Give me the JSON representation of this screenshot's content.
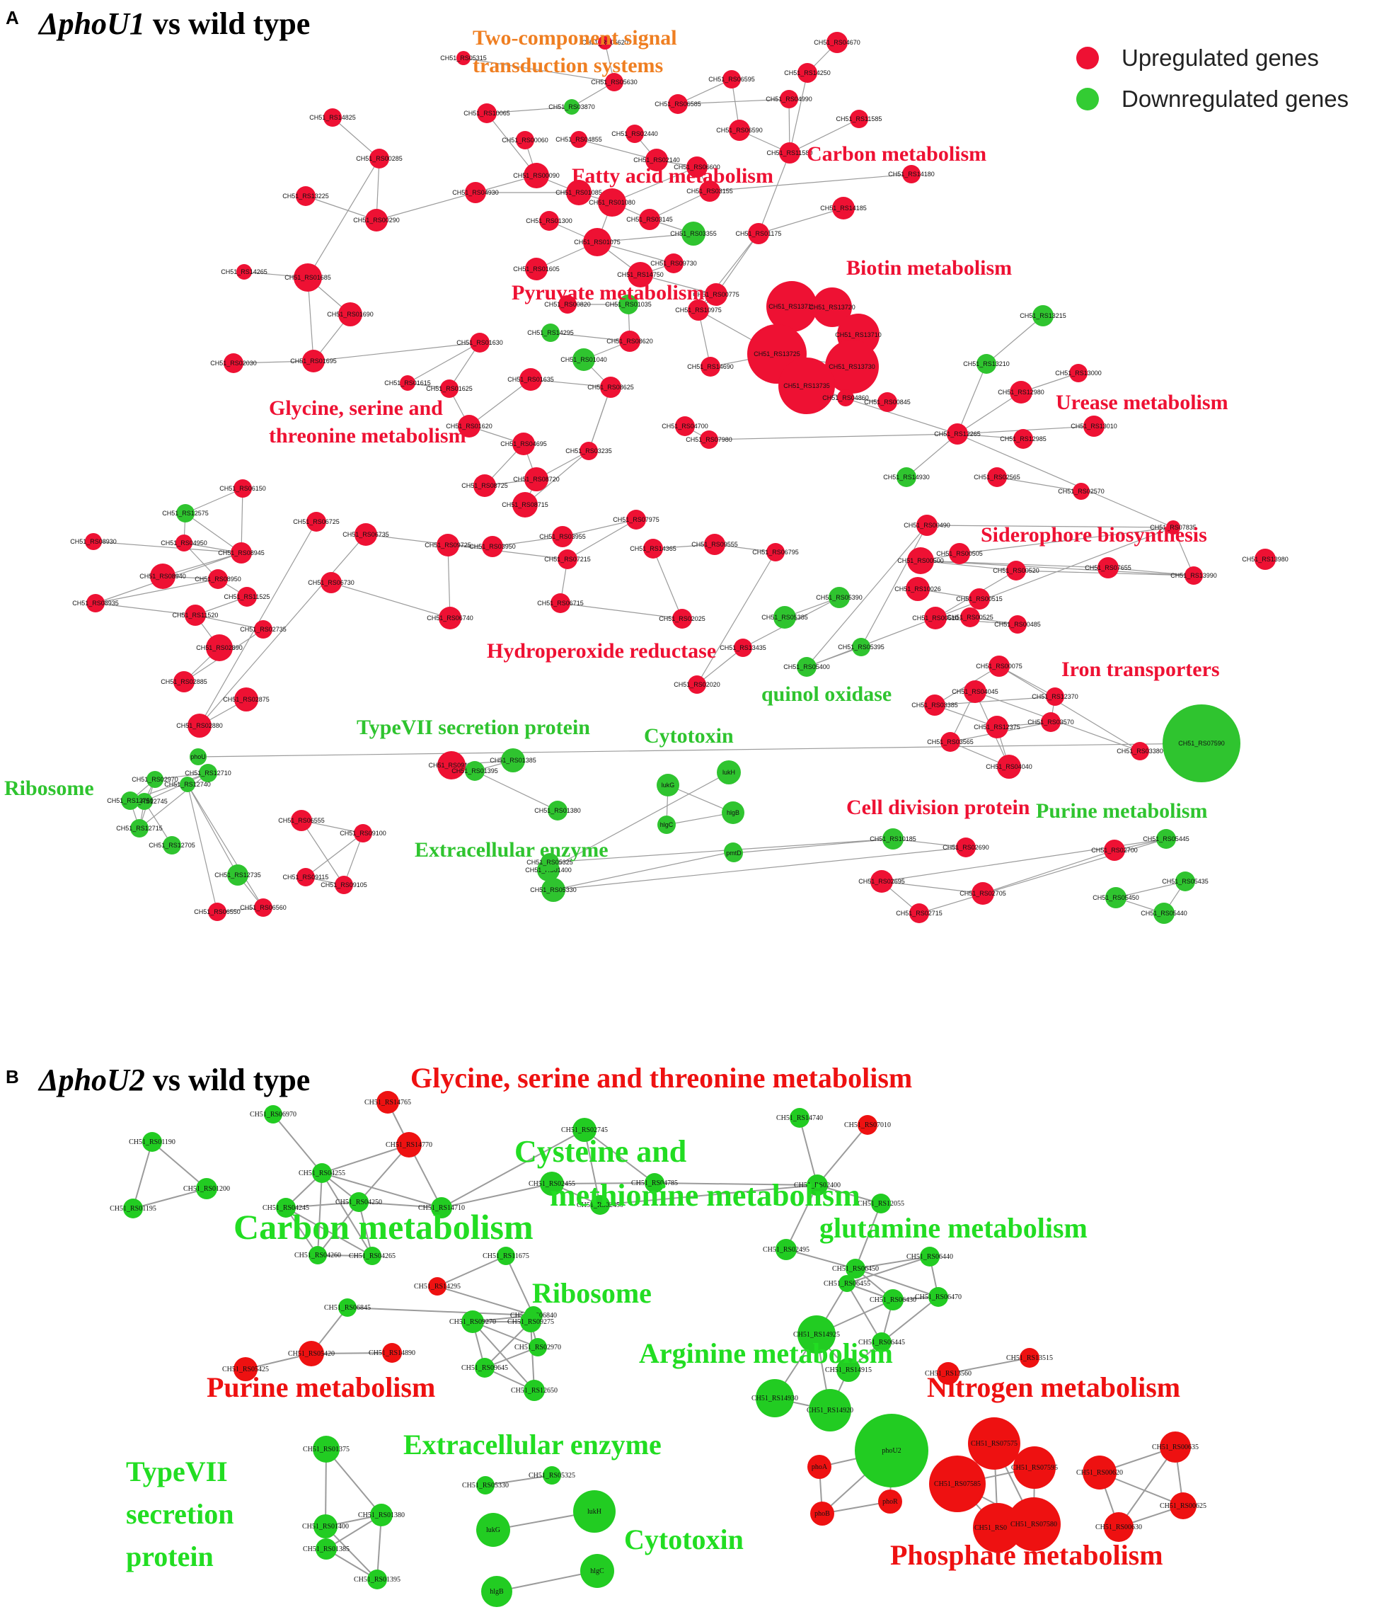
{
  "colors": {
    "up": "#ee1133",
    "down": "#2fc42f",
    "edge": "#9b9b9b",
    "upB": "#ee1111",
    "downB": "#22cc22"
  },
  "legend": {
    "up": "Upregulated genes",
    "down": "Downregulated genes"
  },
  "panelA": {
    "letter": "A",
    "title_gene": "ΔphoU1",
    "title_rest": " vs wild type",
    "categories": [
      {
        "text": "Two-component signal",
        "color": "#ef7f22"
      },
      {
        "text": "transduction systems",
        "color": "#ef7f22"
      },
      {
        "text": "Carbon metabolism",
        "color": "#ee1133"
      },
      {
        "text": "Fatty acid metabolism",
        "color": "#ee1133"
      },
      {
        "text": "Biotin metabolism",
        "color": "#ee1133"
      },
      {
        "text": "Pyruvate metabolism",
        "color": "#ee1133"
      },
      {
        "text": "Urease metabolism",
        "color": "#ee1133"
      },
      {
        "text": "Glycine, serine and",
        "color": "#ee1133"
      },
      {
        "text": "threonine metabolism",
        "color": "#ee1133"
      },
      {
        "text": "Siderophore biosynthesis",
        "color": "#ee1133"
      },
      {
        "text": "Hydroperoxide reductase",
        "color": "#ee1133"
      },
      {
        "text": "Iron transporters",
        "color": "#ee1133"
      },
      {
        "text": "quinol oxidase",
        "color": "#2fc42f"
      },
      {
        "text": "TypeVII secretion protein",
        "color": "#2fc42f"
      },
      {
        "text": "Cytotoxin",
        "color": "#2fc42f"
      },
      {
        "text": "Ribosome",
        "color": "#2fc42f"
      },
      {
        "text": "Cell division protein",
        "color": "#ee1133"
      },
      {
        "text": "Purine metabolism",
        "color": "#2fc42f"
      },
      {
        "text": "Extracellular enzyme",
        "color": "#2fc42f"
      }
    ],
    "nodes": [
      {
        "l": "CH51_RS05315",
        "c": "u"
      },
      {
        "l": "CH51_RS05620",
        "c": "u"
      },
      {
        "l": "CH51_RS05630",
        "c": "u"
      },
      {
        "l": "CH51_RS03870",
        "c": "d"
      },
      {
        "l": "CH51_RS10065",
        "c": "u"
      },
      {
        "l": "CH51_RS14825",
        "c": "u"
      },
      {
        "l": "CH51_RS00285",
        "c": "u"
      },
      {
        "l": "CH51_RS13225",
        "c": "u"
      },
      {
        "l": "CH51_RS00290",
        "c": "u"
      },
      {
        "l": "CH51_RS04930",
        "c": "u"
      },
      {
        "l": "CH51_RS14265",
        "c": "u"
      },
      {
        "l": "CH51_RS01685",
        "c": "u"
      },
      {
        "l": "CH51_RS01690",
        "c": "u"
      },
      {
        "l": "CH51_RS02030",
        "c": "u"
      },
      {
        "l": "CH51_RS01695",
        "c": "u"
      },
      {
        "l": "CH51_RS04670",
        "c": "u"
      },
      {
        "l": "CH51_RS14250",
        "c": "u"
      },
      {
        "l": "CH51_RS06595",
        "c": "u"
      },
      {
        "l": "CH51_RS06585",
        "c": "u"
      },
      {
        "l": "CH51_RS04990",
        "c": "u"
      },
      {
        "l": "CH51_RS11585",
        "c": "u"
      },
      {
        "l": "CH51_RS06590",
        "c": "u"
      },
      {
        "l": "CH51_RS11580",
        "c": "u"
      },
      {
        "l": "CH51_RS14180",
        "c": "u"
      },
      {
        "l": "CH51_RS14185",
        "c": "u"
      },
      {
        "l": "CH51_RS01175",
        "c": "u"
      },
      {
        "l": "CH51_RS02440",
        "c": "u"
      },
      {
        "l": "CH51_RS04855",
        "c": "u"
      },
      {
        "l": "CH51_RS00060",
        "c": "u"
      },
      {
        "l": "CH51_RS02140",
        "c": "u"
      },
      {
        "l": "CH51_RS06600",
        "c": "u"
      },
      {
        "l": "CH51_RS00090",
        "c": "u"
      },
      {
        "l": "CH51_RS01085",
        "c": "u"
      },
      {
        "l": "CH51_RS01080",
        "c": "u"
      },
      {
        "l": "CH51_RS03155",
        "c": "u"
      },
      {
        "l": "CH51_RS03145",
        "c": "u"
      },
      {
        "l": "CH51_RS03355",
        "c": "d"
      },
      {
        "l": "CH51_RS01300",
        "c": "u"
      },
      {
        "l": "CH51_RS01075",
        "c": "u"
      },
      {
        "l": "CH51_RS09730",
        "c": "u"
      },
      {
        "l": "CH51_RS14750",
        "c": "u"
      },
      {
        "l": "CH51_RS01605",
        "c": "u"
      },
      {
        "l": "CH51_RS00775",
        "c": "u"
      },
      {
        "l": "CH51_RS00820",
        "c": "u"
      },
      {
        "l": "CH51_RS01035",
        "c": "d"
      },
      {
        "l": "CH51_RS10975",
        "c": "u"
      },
      {
        "l": "CH51_RS14295",
        "c": "d"
      },
      {
        "l": "CH51_RS08620",
        "c": "u"
      },
      {
        "l": "CH51_RS01040",
        "c": "d"
      },
      {
        "l": "CH51_RS14690",
        "c": "u"
      },
      {
        "l": "CH51_RS13715",
        "c": "u"
      },
      {
        "l": "CH51_RS13720",
        "c": "u"
      },
      {
        "l": "CH51_RS13710",
        "c": "u"
      },
      {
        "l": "CH51_RS13725",
        "c": "u"
      },
      {
        "l": "CH51_RS13730",
        "c": "u"
      },
      {
        "l": "CH51_RS13735",
        "c": "u"
      },
      {
        "l": "CH51_RS04860",
        "c": "u"
      },
      {
        "l": "CH51_RS00845",
        "c": "u"
      },
      {
        "l": "CH51_RS01630",
        "c": "u"
      },
      {
        "l": "CH51_RS01615",
        "c": "u"
      },
      {
        "l": "CH51_RS01625",
        "c": "u"
      },
      {
        "l": "CH51_RS01635",
        "c": "u"
      },
      {
        "l": "CH51_RS08625",
        "c": "u"
      },
      {
        "l": "CH51_RS01620",
        "c": "u"
      },
      {
        "l": "CH51_RS04695",
        "c": "u"
      },
      {
        "l": "CH51_RS03235",
        "c": "u"
      },
      {
        "l": "CH51_RS04700",
        "c": "u"
      },
      {
        "l": "CH51_RS07980",
        "c": "u"
      },
      {
        "l": "CH51_RS08725",
        "c": "u"
      },
      {
        "l": "CH51_RS08720",
        "c": "u"
      },
      {
        "l": "CH51_RS08715",
        "c": "u"
      },
      {
        "l": "CH51_RS13215",
        "c": "d"
      },
      {
        "l": "CH51_RS13210",
        "c": "d"
      },
      {
        "l": "CH51_RS13000",
        "c": "u"
      },
      {
        "l": "CH51_RS12980",
        "c": "u"
      },
      {
        "l": "CH51_RS13010",
        "c": "u"
      },
      {
        "l": "CH51_RS12265",
        "c": "u"
      },
      {
        "l": "CH51_RS12985",
        "c": "u"
      },
      {
        "l": "CH51_RS14930",
        "c": "d"
      },
      {
        "l": "CH51_RS02565",
        "c": "u"
      },
      {
        "l": "CH51_RS02570",
        "c": "u"
      },
      {
        "l": "CH51_RS06150",
        "c": "u"
      },
      {
        "l": "CH51_RS12575",
        "c": "d"
      },
      {
        "l": "CH51_RS08930",
        "c": "u"
      },
      {
        "l": "CH51_RS04950",
        "c": "u"
      },
      {
        "l": "CH51_RS08945",
        "c": "u"
      },
      {
        "l": "CH51_RS08940",
        "c": "u"
      },
      {
        "l": "CH51_RS08950",
        "c": "u"
      },
      {
        "l": "CH51_RS11525",
        "c": "u"
      },
      {
        "l": "CH51_RS08935",
        "c": "u"
      },
      {
        "l": "CH51_RS11520",
        "c": "u"
      },
      {
        "l": "CH51_RS02735",
        "c": "u"
      },
      {
        "l": "CH51_RS02890",
        "c": "u"
      },
      {
        "l": "CH51_RS02885",
        "c": "u"
      },
      {
        "l": "CH51_RS02875",
        "c": "u"
      },
      {
        "l": "CH51_RS02880",
        "c": "u"
      },
      {
        "l": "CH51_RS06725",
        "c": "u"
      },
      {
        "l": "CH51_RS06735",
        "c": "u"
      },
      {
        "l": "CH51_RS06730",
        "c": "u"
      },
      {
        "l": "CH51_RS06740",
        "c": "u"
      },
      {
        "l": "CH51_RS09725",
        "c": "u"
      },
      {
        "l": "CH51_RS03950",
        "c": "u"
      },
      {
        "l": "CH51_RS03955",
        "c": "u"
      },
      {
        "l": "CH51_RS07975",
        "c": "u"
      },
      {
        "l": "CH51_RS07215",
        "c": "u"
      },
      {
        "l": "CH51_RS14365",
        "c": "u"
      },
      {
        "l": "CH51_RS09555",
        "c": "u"
      },
      {
        "l": "CH51_RS06795",
        "c": "u"
      },
      {
        "l": "CH51_RS06715",
        "c": "u"
      },
      {
        "l": "CH51_RS02025",
        "c": "u"
      },
      {
        "l": "CH51_RS02020",
        "c": "u"
      },
      {
        "l": "CH51_RS13435",
        "c": "u"
      },
      {
        "l": "CH51_RS05390",
        "c": "d"
      },
      {
        "l": "CH51_RS05385",
        "c": "d"
      },
      {
        "l": "CH51_RS05395",
        "c": "d"
      },
      {
        "l": "CH51_RS05400",
        "c": "d"
      },
      {
        "l": "CH51_RS00490",
        "c": "u"
      },
      {
        "l": "CH51_RS07835",
        "c": "u"
      },
      {
        "l": "CH51_RS00505",
        "c": "u"
      },
      {
        "l": "CH51_RS00500",
        "c": "u"
      },
      {
        "l": "CH51_RS00520",
        "c": "u"
      },
      {
        "l": "CH51_RS07655",
        "c": "u"
      },
      {
        "l": "CH51_RS13990",
        "c": "u"
      },
      {
        "l": "CH51_RS13980",
        "c": "u"
      },
      {
        "l": "CH51_RS10026",
        "c": "u"
      },
      {
        "l": "CH51_RS00515",
        "c": "u"
      },
      {
        "l": "CH51_RS00525",
        "c": "u"
      },
      {
        "l": "CH51_RS00485",
        "c": "u"
      },
      {
        "l": "CH51_RS00510",
        "c": "u"
      },
      {
        "l": "CH51_RS00075",
        "c": "u"
      },
      {
        "l": "CH51_RS12370",
        "c": "u"
      },
      {
        "l": "CH51_RS03385",
        "c": "u"
      },
      {
        "l": "CH51_RS12375",
        "c": "u"
      },
      {
        "l": "CH51_RS03570",
        "c": "u"
      },
      {
        "l": "CH51_RS03565",
        "c": "u"
      },
      {
        "l": "CH51_RS04040",
        "c": "u"
      },
      {
        "l": "CH51_RS04045",
        "c": "u"
      },
      {
        "l": "CH51_RS03380",
        "c": "u"
      },
      {
        "l": "CH51_RS07590",
        "c": "d"
      },
      {
        "l": "phoU",
        "c": "d"
      },
      {
        "l": "CH51_RS02970",
        "c": "d"
      },
      {
        "l": "CH51_RS12710",
        "c": "d"
      },
      {
        "l": "CH51_RS12745",
        "c": "d"
      },
      {
        "l": "CH51_RS12750",
        "c": "d"
      },
      {
        "l": "CH51_RS12715",
        "c": "d"
      },
      {
        "l": "CH51_RS12705",
        "c": "d"
      },
      {
        "l": "CH51_RS12740",
        "c": "d"
      },
      {
        "l": "CH51_RS12735",
        "c": "d"
      },
      {
        "l": "CH51_RS06550",
        "c": "u"
      },
      {
        "l": "CH51_RS06560",
        "c": "u"
      },
      {
        "l": "CH51_RS06555",
        "c": "u"
      },
      {
        "l": "CH51_RS09100",
        "c": "u"
      },
      {
        "l": "CH51_RS09115",
        "c": "u"
      },
      {
        "l": "CH51_RS09105",
        "c": "u"
      },
      {
        "l": "CH51_RS09110",
        "c": "u"
      },
      {
        "l": "CH51_RS01385",
        "c": "d"
      },
      {
        "l": "CH51_RS01380",
        "c": "d"
      },
      {
        "l": "CH51_RS01395",
        "c": "d"
      },
      {
        "l": "CH51_RS01400",
        "c": "d"
      },
      {
        "l": "lukH",
        "c": "d"
      },
      {
        "l": "lukG",
        "c": "d"
      },
      {
        "l": "hlgB",
        "c": "d"
      },
      {
        "l": "hlgC",
        "c": "d"
      },
      {
        "l": "pmtB",
        "c": "d"
      },
      {
        "l": "pmtD",
        "c": "d"
      },
      {
        "l": "CH51_RS05330",
        "c": "d"
      },
      {
        "l": "CH51_RS05325",
        "c": "d"
      },
      {
        "l": "CH51_RS10185",
        "c": "d"
      },
      {
        "l": "CH51_RS02690",
        "c": "u"
      },
      {
        "l": "CH51_RS02695",
        "c": "u"
      },
      {
        "l": "CH51_RS02705",
        "c": "u"
      },
      {
        "l": "CH51_RS02715",
        "c": "u"
      },
      {
        "l": "CH51_RS02700",
        "c": "u"
      },
      {
        "l": "CH51_RS05445",
        "c": "d"
      },
      {
        "l": "CH51_RS05435",
        "c": "d"
      },
      {
        "l": "CH51_RS05450",
        "c": "d"
      },
      {
        "l": "CH51_RS05440",
        "c": "d"
      },
      {
        "l": "CH51_RS05430",
        "c": "d"
      }
    ]
  },
  "panelB": {
    "letter": "B",
    "title_gene": "ΔphoU2",
    "title_rest": " vs wild type",
    "categories": [
      {
        "text": "Glycine, serine and threonine metabolism",
        "color": "#ee1111"
      },
      {
        "text": "Cysteine and",
        "color": "#22dd22"
      },
      {
        "text": "methionine metabolism",
        "color": "#22dd22"
      },
      {
        "text": "Carbon metabolism",
        "color": "#22dd22"
      },
      {
        "text": "glutamine metabolism",
        "color": "#22dd22"
      },
      {
        "text": "Ribosome",
        "color": "#22dd22"
      },
      {
        "text": "Arginine metabolism",
        "color": "#22dd22"
      },
      {
        "text": "Purine metabolism",
        "color": "#ee1111"
      },
      {
        "text": "Nitrogen metabolism",
        "color": "#ee1111"
      },
      {
        "text": "Extracellular enzyme",
        "color": "#22dd22"
      },
      {
        "text": "TypeVII",
        "color": "#22dd22"
      },
      {
        "text": "secretion",
        "color": "#22dd22"
      },
      {
        "text": "protein",
        "color": "#22dd22"
      },
      {
        "text": "Cytotoxin",
        "color": "#22dd22"
      },
      {
        "text": "Phosphate metabolism",
        "color": "#ee1111"
      }
    ],
    "nodes": [
      {
        "l": "CH51_RS01190",
        "c": "d"
      },
      {
        "l": "CH51_RS01200",
        "c": "d"
      },
      {
        "l": "CH51_RS01195",
        "c": "d"
      },
      {
        "l": "CH51_RS06970",
        "c": "d"
      },
      {
        "l": "CH51_RS14765",
        "c": "u"
      },
      {
        "l": "CH51_RS14770",
        "c": "u"
      },
      {
        "l": "CH51_RS04255",
        "c": "d"
      },
      {
        "l": "CH51_RS04245",
        "c": "d"
      },
      {
        "l": "CH51_RS04250",
        "c": "d"
      },
      {
        "l": "CH51_RS14710",
        "c": "d"
      },
      {
        "l": "CH51_RS04260",
        "c": "d"
      },
      {
        "l": "CH51_RS04265",
        "c": "d"
      },
      {
        "l": "CH51_RS02745",
        "c": "d"
      },
      {
        "l": "CH51_RS04785",
        "c": "d"
      },
      {
        "l": "CH51_RS02455",
        "c": "d"
      },
      {
        "l": "CH51_RS02450",
        "c": "d"
      },
      {
        "l": "CH51_RS14740",
        "c": "d"
      },
      {
        "l": "CH51_RS07010",
        "c": "u"
      },
      {
        "l": "CH51_RS02400",
        "c": "d"
      },
      {
        "l": "CH51_RS12055",
        "c": "d"
      },
      {
        "l": "CH51_RS02495",
        "c": "d"
      },
      {
        "l": "CH51_RS06440",
        "c": "d"
      },
      {
        "l": "CH51_RS06450",
        "c": "d"
      },
      {
        "l": "CH51_RS06455",
        "c": "d"
      },
      {
        "l": "CH51_RS06430",
        "c": "d"
      },
      {
        "l": "CH51_RS06470",
        "c": "d"
      },
      {
        "l": "CH51_RS06445",
        "c": "d"
      },
      {
        "l": "CH51_RS14925",
        "c": "d"
      },
      {
        "l": "CH51_RS14915",
        "c": "d"
      },
      {
        "l": "CH51_RS14930",
        "c": "d"
      },
      {
        "l": "CH51_RS14920",
        "c": "d"
      },
      {
        "l": "CH51_RS11675",
        "c": "d"
      },
      {
        "l": "CH51_RS14295",
        "c": "u"
      },
      {
        "l": "CH51_RS06840",
        "c": "d"
      },
      {
        "l": "CH51_RS06845",
        "c": "d"
      },
      {
        "l": "CH51_RS09270",
        "c": "d"
      },
      {
        "l": "CH51_RS09275",
        "c": "d"
      },
      {
        "l": "CH51_RS02970",
        "c": "d"
      },
      {
        "l": "CH51_RS09645",
        "c": "d"
      },
      {
        "l": "CH51_RS12650",
        "c": "d"
      },
      {
        "l": "CH51_RS05420",
        "c": "u"
      },
      {
        "l": "CH51_RS05425",
        "c": "u"
      },
      {
        "l": "CH51_RS14890",
        "c": "u"
      },
      {
        "l": "CH51_RS13515",
        "c": "u"
      },
      {
        "l": "CH51_RS13560",
        "c": "u"
      },
      {
        "l": "CH51_RS01375",
        "c": "d"
      },
      {
        "l": "CH51_RS01380",
        "c": "d"
      },
      {
        "l": "CH51_RS01400",
        "c": "d"
      },
      {
        "l": "CH51_RS01385",
        "c": "d"
      },
      {
        "l": "CH51_RS01395",
        "c": "d"
      },
      {
        "l": "CH51_RS05325",
        "c": "d"
      },
      {
        "l": "CH51_RS05330",
        "c": "d"
      },
      {
        "l": "lukG",
        "c": "d"
      },
      {
        "l": "lukH",
        "c": "d"
      },
      {
        "l": "hlgB",
        "c": "d"
      },
      {
        "l": "hlgC",
        "c": "d"
      },
      {
        "l": "phoU2",
        "c": "d"
      },
      {
        "l": "phoA",
        "c": "u"
      },
      {
        "l": "phoB",
        "c": "u"
      },
      {
        "l": "phoR",
        "c": "u"
      },
      {
        "l": "CH51_RS07575",
        "c": "u"
      },
      {
        "l": "CH51_RS07585",
        "c": "u"
      },
      {
        "l": "CH51_RS07595",
        "c": "u"
      },
      {
        "l": "CH51_RS07590",
        "c": "u"
      },
      {
        "l": "CH51_RS07580",
        "c": "u"
      },
      {
        "l": "CH51_RS00635",
        "c": "u"
      },
      {
        "l": "CH51_RS00620",
        "c": "u"
      },
      {
        "l": "CH51_RS00625",
        "c": "u"
      },
      {
        "l": "CH51_RS00630",
        "c": "u"
      }
    ]
  }
}
